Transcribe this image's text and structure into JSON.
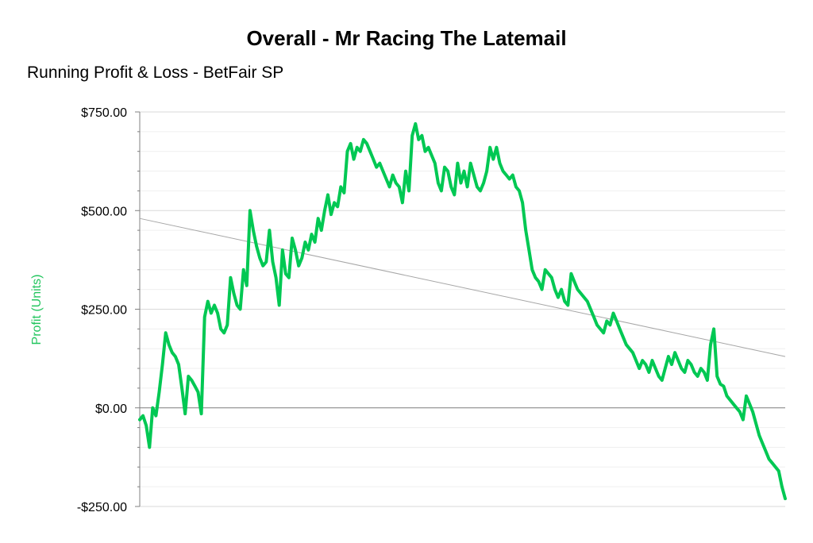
{
  "chart_data": {
    "type": "line",
    "title": "Overall - Mr Racing The Latemail",
    "subtitle": "Running Profit & Loss - BetFair SP",
    "ylabel": "Profit (Units)",
    "xlabel": "",
    "ylim": [
      -250,
      750
    ],
    "y_ticks": [
      750,
      500,
      250,
      0,
      -250
    ],
    "y_tick_labels": [
      "$750.00",
      "$500.00",
      "$250.00",
      "$0.00",
      "-$250.00"
    ],
    "grid": true,
    "legend": "none",
    "series": [
      {
        "values": [
          -30,
          -20,
          -45,
          -100,
          0,
          -20,
          40,
          110,
          190,
          160,
          140,
          130,
          110,
          50,
          -15,
          80,
          70,
          55,
          40,
          -15,
          230,
          270,
          240,
          260,
          240,
          200,
          190,
          210,
          330,
          290,
          260,
          250,
          350,
          310,
          500,
          450,
          410,
          380,
          360,
          370,
          450,
          370,
          330,
          260,
          400,
          340,
          330,
          430,
          400,
          360,
          380,
          420,
          400,
          440,
          420,
          480,
          450,
          500,
          540,
          490,
          520,
          510,
          560,
          545,
          650,
          670,
          630,
          660,
          650,
          680,
          670,
          650,
          630,
          610,
          620,
          600,
          580,
          560,
          590,
          570,
          560,
          520,
          600,
          550,
          690,
          720,
          680,
          690,
          650,
          660,
          640,
          620,
          570,
          550,
          610,
          600,
          560,
          540,
          620,
          570,
          600,
          560,
          620,
          590,
          560,
          550,
          570,
          600,
          660,
          630,
          660,
          620,
          600,
          590,
          580,
          590,
          560,
          550,
          520,
          450,
          400,
          350,
          330,
          320,
          300,
          350,
          340,
          330,
          300,
          280,
          300,
          270,
          260,
          340,
          320,
          300,
          290,
          280,
          270,
          250,
          230,
          210,
          200,
          190,
          220,
          210,
          240,
          220,
          200,
          180,
          160,
          150,
          140,
          120,
          100,
          120,
          110,
          90,
          120,
          100,
          80,
          70,
          100,
          130,
          110,
          140,
          120,
          100,
          90,
          120,
          110,
          90,
          80,
          100,
          90,
          70,
          160,
          200,
          80,
          60,
          55,
          30,
          20,
          10,
          0,
          -10,
          -30,
          30,
          10,
          -10,
          -40,
          -70,
          -90,
          -110,
          -130,
          -140,
          -150,
          -160,
          -200,
          -230
        ]
      }
    ],
    "trendline": {
      "start": 480,
      "end": 130
    }
  },
  "colors": {
    "series": "#00c853",
    "trend": "#a6a6a6",
    "grid": "#d9d9d9",
    "axis": "#808080",
    "ylabel": "#22c55e"
  }
}
